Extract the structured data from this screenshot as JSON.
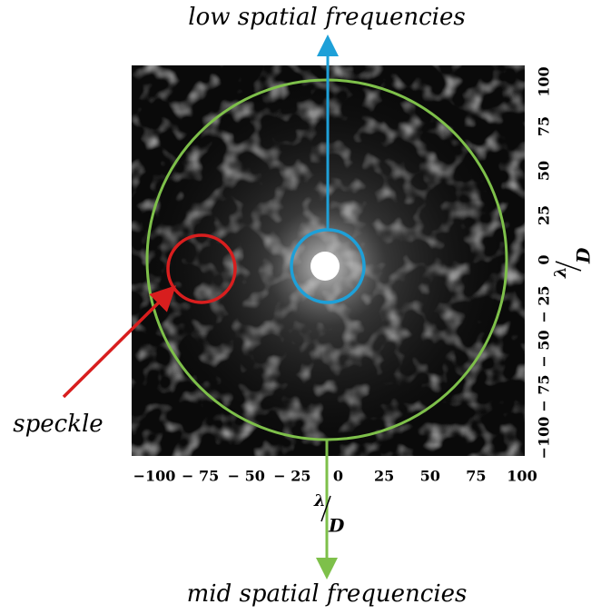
{
  "top_label": "low spatial frequencies",
  "bottom_label": "mid spatial frequencies",
  "speckle_label": "speckle",
  "x_axis": {
    "ticks": [
      "−100",
      "− 75",
      "− 50",
      "− 25",
      "0",
      "25",
      "50",
      "75",
      "100"
    ],
    "label_num": "λ",
    "label_den": "D"
  },
  "y_axis": {
    "ticks": [
      "−100",
      "− 75",
      "− 50",
      "− 25",
      "0",
      "25",
      "50",
      "75",
      "100"
    ],
    "label_num": "λ",
    "label_den": "D"
  }
}
